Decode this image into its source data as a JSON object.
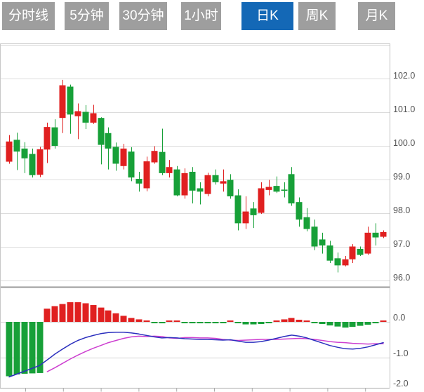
{
  "tabs": {
    "items": [
      {
        "label": "分时线",
        "active": false
      },
      {
        "label": "5分钟",
        "active": false
      },
      {
        "label": "30分钟",
        "active": false
      },
      {
        "label": "1小时",
        "active": false
      },
      {
        "label": "日K",
        "active": true
      },
      {
        "label": "周K",
        "active": false
      },
      {
        "label": "月K",
        "active": false
      }
    ]
  },
  "chart_data": {
    "type": "candlestick_with_macd",
    "price_panel": {
      "y_axis_labels": [
        "102.0",
        "101.0",
        "100.0",
        "99.0",
        "98.0",
        "97.0",
        "96.0"
      ],
      "y_axis_values": [
        102,
        101,
        100,
        99,
        98,
        97,
        96
      ],
      "gridline_values": [
        103,
        102,
        101,
        100,
        99,
        98,
        97,
        96
      ],
      "ylim": [
        95.9,
        103.1
      ],
      "grid": true,
      "candles_ohlc": [
        [
          99.53,
          100.32,
          99.47,
          100.13
        ],
        [
          100.18,
          100.39,
          99.28,
          99.83
        ],
        [
          99.92,
          100.11,
          99.19,
          99.63
        ],
        [
          99.76,
          99.92,
          99.06,
          99.13
        ],
        [
          99.14,
          99.97,
          99.07,
          99.9
        ],
        [
          99.89,
          100.69,
          99.49,
          100.56
        ],
        [
          100.55,
          100.79,
          99.92,
          100.0
        ],
        [
          100.83,
          101.96,
          100.38,
          101.8
        ],
        [
          101.76,
          101.82,
          100.36,
          100.93
        ],
        [
          100.88,
          101.26,
          100.2,
          101.03
        ],
        [
          101.01,
          101.21,
          100.5,
          100.69
        ],
        [
          100.69,
          101.22,
          100.65,
          100.97
        ],
        [
          100.83,
          100.85,
          99.45,
          100.03
        ],
        [
          100.38,
          100.55,
          99.3,
          99.92
        ],
        [
          99.97,
          100.1,
          99.26,
          99.47
        ],
        [
          99.4,
          100.06,
          99.3,
          99.92
        ],
        [
          99.83,
          99.96,
          98.95,
          99.06
        ],
        [
          99.02,
          99.23,
          98.64,
          98.88
        ],
        [
          98.74,
          99.68,
          98.65,
          99.54
        ],
        [
          99.51,
          99.99,
          99.47,
          99.85
        ],
        [
          99.82,
          100.51,
          99.13,
          99.19
        ],
        [
          99.19,
          99.58,
          99.06,
          99.37
        ],
        [
          99.3,
          99.4,
          98.5,
          98.53
        ],
        [
          98.53,
          99.33,
          98.43,
          99.19
        ],
        [
          99.23,
          99.37,
          98.29,
          98.67
        ],
        [
          98.74,
          98.92,
          98.26,
          98.64
        ],
        [
          98.57,
          99.2,
          98.5,
          99.13
        ],
        [
          99.13,
          99.3,
          98.85,
          98.92
        ],
        [
          98.88,
          99.3,
          98.64,
          98.95
        ],
        [
          98.99,
          99.16,
          98.43,
          98.5
        ],
        [
          98.53,
          98.71,
          97.49,
          97.7
        ],
        [
          97.7,
          98.5,
          97.53,
          98.05
        ],
        [
          98.14,
          98.33,
          97.56,
          97.94
        ],
        [
          98.01,
          98.92,
          97.98,
          98.74
        ],
        [
          98.69,
          98.99,
          98.53,
          98.78
        ],
        [
          98.81,
          99.09,
          98.6,
          98.64
        ],
        [
          98.7,
          98.92,
          98.47,
          98.68
        ],
        [
          99.16,
          99.37,
          98.22,
          98.29
        ],
        [
          98.33,
          98.47,
          97.6,
          97.81
        ],
        [
          97.88,
          98.15,
          97.46,
          97.53
        ],
        [
          97.6,
          97.81,
          96.9,
          97.01
        ],
        [
          97.22,
          97.42,
          96.8,
          97.04
        ],
        [
          97.04,
          97.18,
          96.52,
          96.59
        ],
        [
          96.66,
          96.83,
          96.24,
          96.45
        ],
        [
          96.45,
          96.73,
          96.42,
          96.63
        ],
        [
          96.63,
          97.08,
          96.52,
          97.01
        ],
        [
          96.94,
          97.01,
          96.73,
          96.76
        ],
        [
          96.8,
          97.6,
          96.76,
          97.42
        ],
        [
          97.42,
          97.7,
          97.04,
          97.28
        ],
        [
          97.3,
          97.49,
          97.26,
          97.44
        ]
      ]
    },
    "macd_panel": {
      "y_axis_labels": [
        "0.0",
        "-1.0",
        "-2.0"
      ],
      "y_axis_values": [
        0,
        -1,
        -2
      ],
      "ylim": [
        -2.1,
        0.7
      ],
      "histogram": [
        -1.52,
        -1.47,
        -1.45,
        -1.44,
        -1.43,
        0.37,
        0.44,
        0.5,
        0.55,
        0.55,
        0.52,
        0.47,
        0.4,
        0.32,
        0.24,
        0.17,
        0.11,
        0.07,
        0.04,
        -0.03,
        -0.04,
        0.02,
        0.01,
        -0.03,
        -0.04,
        -0.04,
        -0.04,
        -0.04,
        -0.01,
        0.02,
        -0.02,
        -0.07,
        -0.07,
        -0.06,
        -0.02,
        0.04,
        0.07,
        0.11,
        0.06,
        0.03,
        -0.02,
        -0.06,
        -0.1,
        -0.13,
        -0.16,
        -0.14,
        -0.11,
        -0.08,
        -0.04,
        0.03
      ],
      "dif_line": [
        -1.54,
        -1.46,
        -1.38,
        -1.3,
        -1.22,
        -1.06,
        -0.9,
        -0.76,
        -0.63,
        -0.52,
        -0.44,
        -0.38,
        -0.33,
        -0.3,
        -0.29,
        -0.29,
        -0.31,
        -0.34,
        -0.38,
        -0.42,
        -0.45,
        -0.44,
        -0.45,
        -0.47,
        -0.48,
        -0.49,
        -0.49,
        -0.5,
        -0.51,
        -0.5,
        -0.54,
        -0.57,
        -0.57,
        -0.55,
        -0.51,
        -0.46,
        -0.41,
        -0.37,
        -0.4,
        -0.45,
        -0.52,
        -0.59,
        -0.66,
        -0.71,
        -0.75,
        -0.76,
        -0.74,
        -0.7,
        -0.64,
        -0.58
      ],
      "dea_line": [
        null,
        null,
        null,
        null,
        null,
        -1.39,
        -1.28,
        -1.16,
        -1.04,
        -0.93,
        -0.83,
        -0.74,
        -0.66,
        -0.58,
        -0.52,
        -0.46,
        -0.42,
        -0.4,
        -0.41,
        -0.4,
        -0.41,
        -0.45,
        -0.46,
        -0.44,
        -0.44,
        -0.45,
        -0.45,
        -0.46,
        -0.49,
        -0.51,
        -0.52,
        -0.51,
        -0.5,
        -0.49,
        -0.49,
        -0.49,
        -0.48,
        -0.47,
        -0.46,
        -0.47,
        -0.49,
        -0.52,
        -0.55,
        -0.57,
        -0.58,
        -0.6,
        -0.61,
        -0.62,
        -0.61,
        -0.61
      ]
    },
    "x_axis": {
      "labels": [],
      "tick_marks": 10
    },
    "colors": {
      "up": "#e02020",
      "down": "#17a038",
      "dif": "#2b2fbe",
      "dea": "#cd3fd0",
      "active_tab": "#1468b6",
      "inactive_tab": "#9e9e9e",
      "axis_text": "#555555",
      "gridline": "#dcdcdc"
    }
  }
}
